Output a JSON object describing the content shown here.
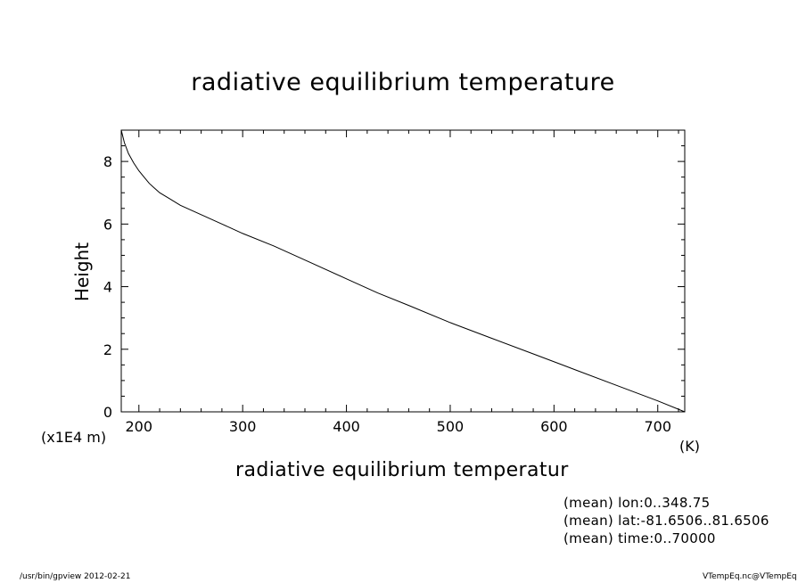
{
  "chart_data": {
    "type": "line",
    "title": "radiative equilibrium temperature",
    "xlabel": "radiative equilibrium temperatur",
    "ylabel": "Height",
    "x_units": "(K)",
    "y_units": "(x1E4 m)",
    "xlim": [
      183,
      726
    ],
    "ylim": [
      0,
      9
    ],
    "xticks": [
      200,
      300,
      400,
      500,
      600,
      700
    ],
    "yticks": [
      0,
      2,
      4,
      6,
      8
    ],
    "grid": false,
    "series": [
      {
        "x": [
          183,
          186,
          190,
          195,
          200,
          205,
          210,
          215,
          220,
          230,
          240,
          260,
          280,
          300,
          330,
          360,
          400,
          430,
          460,
          500,
          540,
          580,
          620,
          660,
          700,
          726
        ],
        "y": [
          9.0,
          8.6,
          8.25,
          7.95,
          7.7,
          7.5,
          7.3,
          7.15,
          7.0,
          6.8,
          6.6,
          6.3,
          6.0,
          5.7,
          5.3,
          4.85,
          4.25,
          3.8,
          3.4,
          2.85,
          2.35,
          1.85,
          1.35,
          0.85,
          0.35,
          0.0
        ]
      }
    ]
  },
  "annotations": [
    "(mean) lon:0..348.75",
    "(mean) lat:-81.6506..81.6506",
    "(mean) time:0..70000"
  ],
  "footer": {
    "left": "/usr/bin/gpview   2012-02-21",
    "right": "VTempEq.nc@VTempEq"
  }
}
